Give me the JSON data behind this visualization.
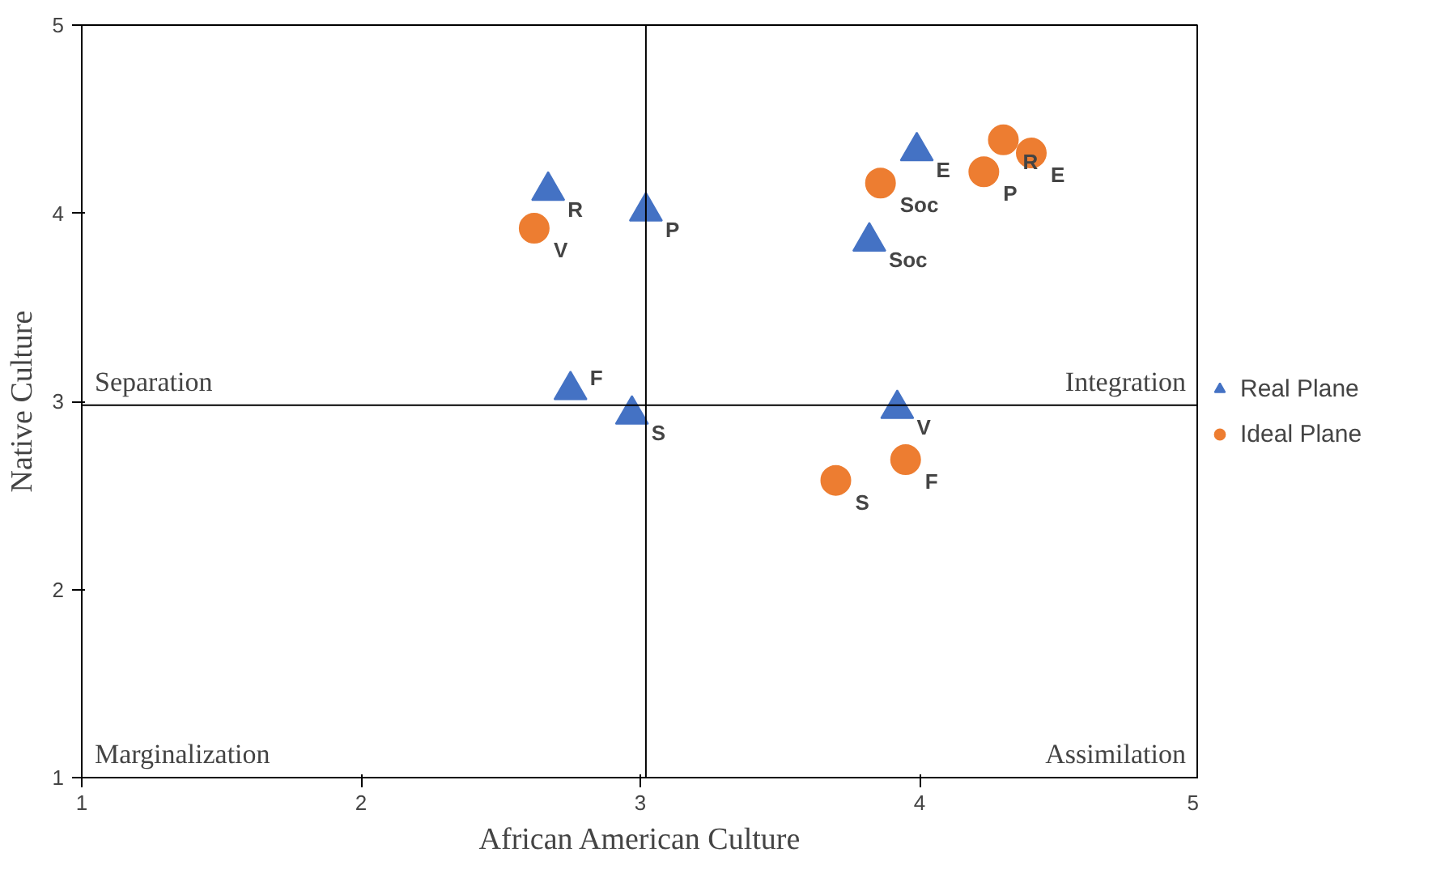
{
  "chart_data": {
    "type": "scatter",
    "xlabel": "African American Culture",
    "ylabel": "Native Culture",
    "xlim": [
      1,
      5
    ],
    "ylim": [
      1,
      5
    ],
    "xticks": [
      1,
      2,
      3,
      4,
      5
    ],
    "yticks": [
      1,
      2,
      3,
      4,
      5
    ],
    "grid": false,
    "legend": "right",
    "series": [
      {
        "name": "Real Plane",
        "color": "#4472c4",
        "marker": "triangle",
        "x": [
          2.67,
          3.02,
          3.99,
          3.82,
          2.75,
          2.97,
          3.92
        ],
        "values": [
          4.12,
          4.01,
          4.33,
          3.85,
          3.06,
          2.93,
          2.96
        ],
        "value_labels": [
          "R",
          "P",
          "E",
          "Soc",
          "F",
          "S",
          "V"
        ]
      },
      {
        "name": "Ideal Plane",
        "color": "#ed7d31",
        "marker": "circle",
        "x": [
          2.62,
          3.86,
          4.3,
          4.4,
          4.23,
          3.95,
          3.7
        ],
        "values": [
          3.92,
          4.16,
          4.39,
          4.32,
          4.22,
          2.69,
          2.58
        ],
        "value_labels": [
          "V",
          "Soc",
          "R",
          "E",
          "P",
          "F",
          "S"
        ]
      }
    ],
    "ref_lines": [
      {
        "axis": "x",
        "value": 3.02,
        "color": "#000000"
      },
      {
        "axis": "y",
        "value": 2.98,
        "color": "#000000"
      }
    ],
    "annotations": [
      "Separation",
      "Integration",
      "Marginalization",
      "Assimilation"
    ]
  }
}
